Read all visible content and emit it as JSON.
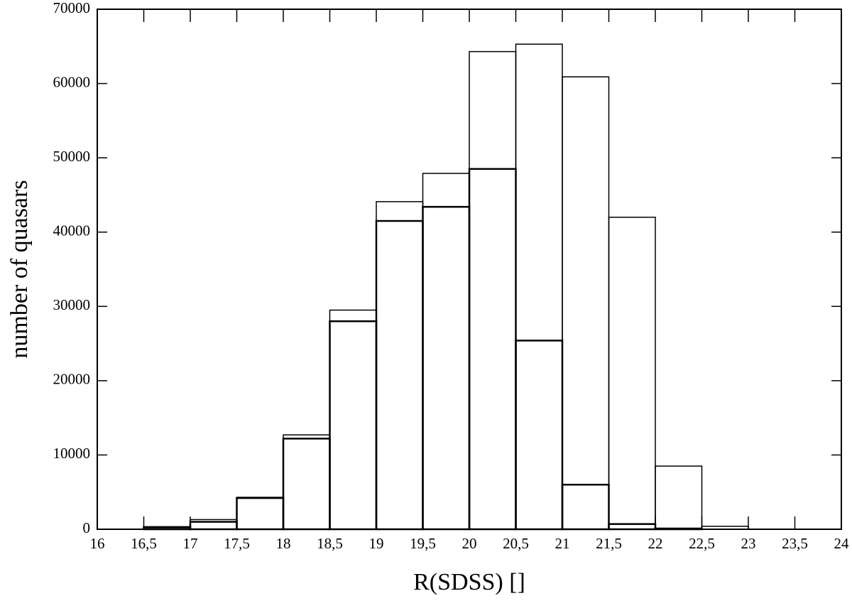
{
  "chart_data": {
    "type": "histogram",
    "xlabel": "R(SDSS) []",
    "ylabel": "number of quasars",
    "bins": [
      16.5,
      17,
      17.5,
      18,
      18.5,
      19,
      19.5,
      20,
      20.5,
      21,
      21.5,
      22,
      22.5,
      23
    ],
    "series": [
      {
        "color": "#000000",
        "values": [
          200,
          1300,
          4300,
          12700,
          29500,
          44100,
          47900,
          64300,
          65300,
          60900,
          42000,
          8500,
          400
        ]
      },
      {
        "color": "#000000",
        "values": [
          300,
          1000,
          4200,
          12200,
          28000,
          41500,
          43400,
          48500,
          25400,
          6000,
          700,
          100,
          0
        ]
      }
    ],
    "xlim": [
      16,
      24
    ],
    "xticks": [
      16,
      {
        "value": 16.5,
        "label": "16,5"
      },
      17,
      {
        "value": 17.5,
        "label": "17,5"
      },
      18,
      {
        "value": 18.5,
        "label": "18,5"
      },
      19,
      {
        "value": 19.5,
        "label": "19,5"
      },
      20,
      {
        "value": 20.5,
        "label": "20,5"
      },
      21,
      {
        "value": 21.5,
        "label": "21,5"
      },
      22,
      {
        "value": 22.5,
        "label": "22,5"
      },
      23,
      {
        "value": 23.5,
        "label": "23,5"
      },
      24
    ],
    "ylim": [
      0,
      70000
    ],
    "yticks": [
      0,
      10000,
      20000,
      30000,
      40000,
      50000,
      60000,
      70000
    ]
  }
}
